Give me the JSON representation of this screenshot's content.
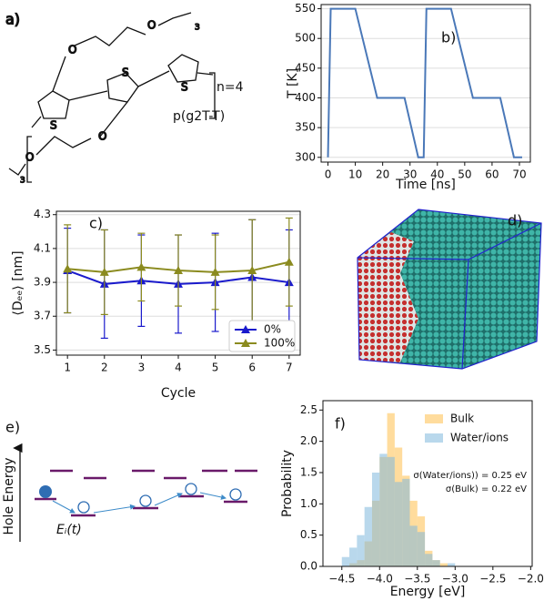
{
  "panels": {
    "a": {
      "label": "a)",
      "repeat": "n=4",
      "name": "p(g2T-T)",
      "atoms": [
        "O",
        "O",
        "O",
        "O",
        "S",
        "S",
        "S"
      ],
      "subscripts": [
        "3",
        "3"
      ]
    },
    "d": {
      "label": "d)"
    },
    "e": {
      "label": "e)",
      "axis_label": "Hole Energy",
      "hop_label": "Eᵢ(t)"
    }
  },
  "chart_data": [
    {
      "type": "line",
      "panel_label": "b)",
      "xlabel": "Time [ns]",
      "ylabel": "T [K]",
      "x": [
        0,
        1,
        10,
        18,
        28,
        33,
        35,
        36,
        45,
        53,
        63,
        68,
        71
      ],
      "values": [
        300,
        550,
        550,
        400,
        400,
        300,
        300,
        550,
        550,
        400,
        400,
        300,
        300
      ],
      "color": "#4a78b8",
      "xlim": [
        -2.5,
        74
      ],
      "ylim": [
        292,
        557
      ],
      "xticks": [
        0,
        10,
        20,
        30,
        40,
        50,
        60,
        70
      ],
      "yticks": [
        300,
        350,
        400,
        450,
        500,
        550
      ],
      "grid": true
    },
    {
      "type": "line",
      "panel_label": "c)",
      "xlabel": "Cycle",
      "ylabel": "⟨Dₑₑ⟩ [nm]",
      "x": [
        1,
        2,
        3,
        4,
        5,
        6,
        7
      ],
      "series": [
        {
          "name": "0%",
          "color": "#1a1acc",
          "values": [
            3.97,
            3.89,
            3.91,
            3.89,
            3.9,
            3.93,
            3.9
          ],
          "errors": [
            0.25,
            0.32,
            0.27,
            0.29,
            0.29,
            0.34,
            0.31
          ]
        },
        {
          "name": "100%",
          "color": "#8b8b1f",
          "values": [
            3.98,
            3.96,
            3.99,
            3.97,
            3.96,
            3.97,
            4.02
          ],
          "errors": [
            0.26,
            0.25,
            0.2,
            0.21,
            0.22,
            0.3,
            0.26
          ]
        }
      ],
      "xlim": [
        0.7,
        7.3
      ],
      "ylim": [
        3.47,
        4.32
      ],
      "xticks": [
        1,
        2,
        3,
        4,
        5,
        6,
        7
      ],
      "yticks": [
        3.5,
        3.7,
        3.9,
        4.1,
        4.3
      ],
      "grid": true,
      "legend": "lower right"
    },
    {
      "type": "histogram",
      "panel_label": "f)",
      "xlabel": "Energy [eV]",
      "ylabel": "Probability",
      "bins": [
        -4.5,
        -4.4,
        -4.3,
        -4.2,
        -4.1,
        -4.0,
        -3.9,
        -3.8,
        -3.7,
        -3.6,
        -3.5,
        -3.4,
        -3.3,
        -3.2,
        -3.1,
        -3.0
      ],
      "series": [
        {
          "name": "Bulk",
          "color": "#ffc04d",
          "values": [
            0,
            0.05,
            0.1,
            0.4,
            1.05,
            1.75,
            2.45,
            1.9,
            1.45,
            1.05,
            0.8,
            0.25,
            0.1,
            0.05,
            0
          ]
        },
        {
          "name": "Water/ions",
          "color": "#7fb8dd",
          "values": [
            0.15,
            0.3,
            0.5,
            0.95,
            1.5,
            1.8,
            1.75,
            1.35,
            1.4,
            0.65,
            0.55,
            0.2,
            0.1,
            0,
            0.05
          ]
        }
      ],
      "xlim": [
        -4.75,
        -1.98
      ],
      "ylim": [
        0,
        2.65
      ],
      "xticks": [
        {
          "value": -4.5,
          "label": "−4.5"
        },
        {
          "value": -4.0,
          "label": "−4.0"
        },
        {
          "value": -3.5,
          "label": "−3.5"
        },
        {
          "value": -3.0,
          "label": "−3.0"
        },
        {
          "value": -2.5,
          "label": "−2.5"
        },
        {
          "value": -2.0,
          "label": "−2.0"
        }
      ],
      "yticks": [
        {
          "value": 0,
          "label": "0.0"
        },
        {
          "value": 0.5,
          "label": "0.5"
        },
        {
          "value": 1.0,
          "label": "1.0"
        },
        {
          "value": 1.5,
          "label": "1.5"
        },
        {
          "value": 2.0,
          "label": "2.0"
        },
        {
          "value": 2.5,
          "label": "2.5"
        }
      ],
      "grid": false,
      "legend": "upper right",
      "annotations": [
        "σ(Water/ions)) = 0.25 eV",
        "σ(Bulk) = 0.22 eV"
      ]
    }
  ]
}
